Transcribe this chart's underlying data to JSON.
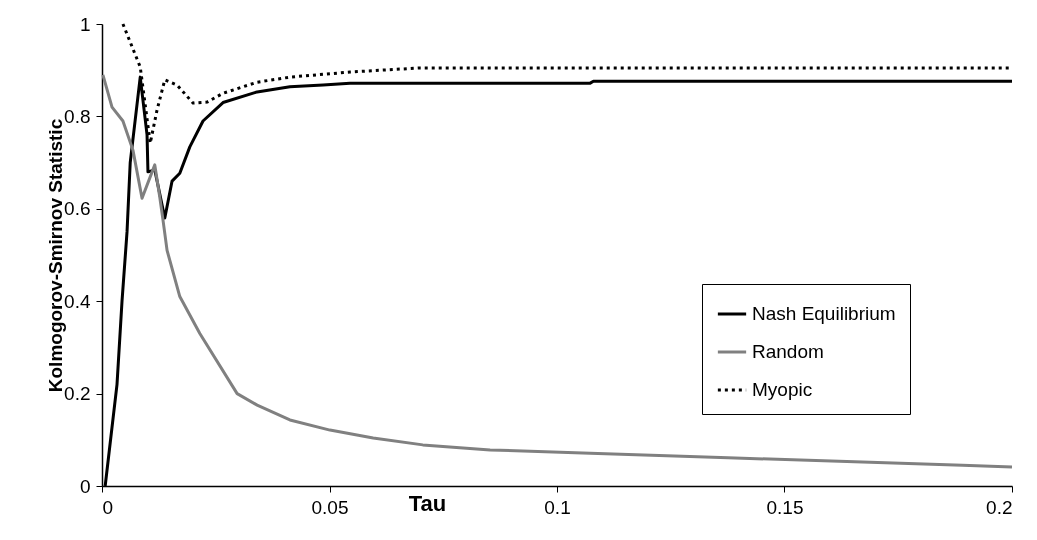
{
  "chart_data": {
    "type": "line",
    "xlabel": "Tau",
    "ylabel": "Kolmogorov-Smirnov Statistic",
    "xlim": [
      0,
      0.2
    ],
    "ylim": [
      0,
      1
    ],
    "xticks": [
      0,
      0.05,
      0.1,
      0.15,
      0.2
    ],
    "yticks": [
      0,
      0.2,
      0.4,
      0.6,
      0.8,
      1
    ],
    "grid": false,
    "legend": "right",
    "marker": "none",
    "series": [
      {
        "name": "Nash Equilibrium",
        "color": "#000000",
        "line_style": "solid",
        "x": [
          0.0007,
          0.0033,
          0.0044,
          0.0055,
          0.0062,
          0.0084,
          0.0099,
          0.0101,
          0.0116,
          0.0138,
          0.0154,
          0.0171,
          0.0193,
          0.0222,
          0.0266,
          0.0341,
          0.0413,
          0.0486,
          0.0545,
          0.1073,
          0.108,
          0.2
        ],
        "values": [
          0,
          0.22,
          0.4,
          0.55,
          0.7,
          0.885,
          0.76,
          0.68,
          0.684,
          0.58,
          0.66,
          0.677,
          0.734,
          0.79,
          0.83,
          0.853,
          0.864,
          0.868,
          0.872,
          0.872,
          0.876,
          0.876
        ]
      },
      {
        "name": "Random",
        "color": "#808080",
        "line_style": "solid",
        "x": [
          0.0002,
          0.0022,
          0.0046,
          0.0068,
          0.0088,
          0.0116,
          0.0127,
          0.0134,
          0.0143,
          0.0171,
          0.0215,
          0.0297,
          0.0341,
          0.0413,
          0.0501,
          0.0596,
          0.0705,
          0.0853,
          0.1073,
          0.1376,
          0.1671,
          0.1891,
          0.2
        ],
        "values": [
          0.89,
          0.82,
          0.79,
          0.727,
          0.623,
          0.695,
          0.625,
          0.576,
          0.51,
          0.41,
          0.33,
          0.2,
          0.175,
          0.143,
          0.121,
          0.104,
          0.089,
          0.078,
          0.071,
          0.061,
          0.052,
          0.045,
          0.041
        ]
      },
      {
        "name": "Myopic",
        "color": "#000000",
        "line_style": "dotted",
        "x": [
          0.0046,
          0.0084,
          0.0106,
          0.0121,
          0.0138,
          0.0165,
          0.02,
          0.0231,
          0.0266,
          0.0341,
          0.0413,
          0.0545,
          0.07,
          0.2
        ],
        "values": [
          1,
          0.907,
          0.742,
          0.814,
          0.879,
          0.868,
          0.829,
          0.831,
          0.85,
          0.874,
          0.885,
          0.896,
          0.905,
          0.905
        ]
      }
    ]
  }
}
